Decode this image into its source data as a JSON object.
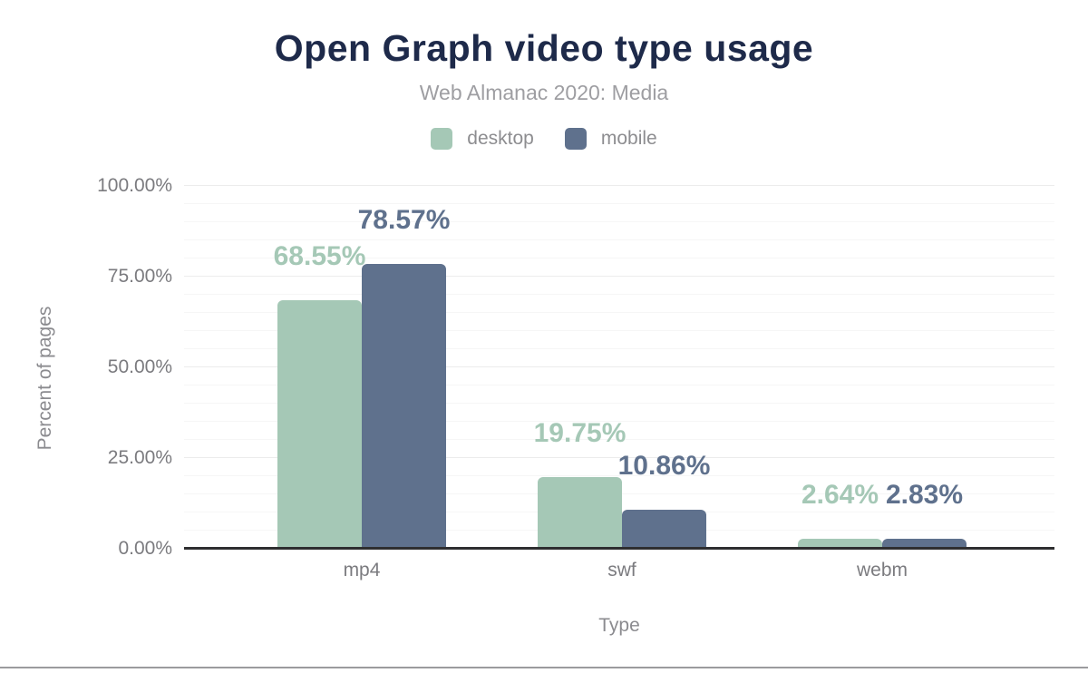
{
  "chart_data": {
    "type": "bar",
    "title": "Open Graph video type usage",
    "subtitle": "Web Almanac 2020: Media",
    "categories": [
      "mp4",
      "swf",
      "webm"
    ],
    "series": [
      {
        "name": "desktop",
        "color": "#a5c8b6",
        "values": [
          68.55,
          19.75,
          2.64
        ],
        "value_labels": [
          "68.55%",
          "19.75%",
          "2.64%"
        ]
      },
      {
        "name": "mobile",
        "color": "#5f718d",
        "values": [
          78.57,
          10.86,
          2.83
        ],
        "value_labels": [
          "78.57%",
          "10.86%",
          "2.83%"
        ]
      }
    ],
    "xlabel": "Type",
    "ylabel": "Percent of pages",
    "ylim": [
      0,
      100
    ],
    "ytick_labels": [
      "100.00%",
      "75.00%",
      "50.00%",
      "25.00%",
      "0.00%"
    ],
    "grid": {
      "orientation": "horizontal",
      "major_interval_pct": 25,
      "minor_interval_pct": 5
    },
    "legend_position": "top",
    "colors": {
      "title": "#1e2a4a",
      "subtitle": "#9e9ea2",
      "axis_text": "#7b7b7f",
      "axis_line": "#2e2e30"
    }
  }
}
